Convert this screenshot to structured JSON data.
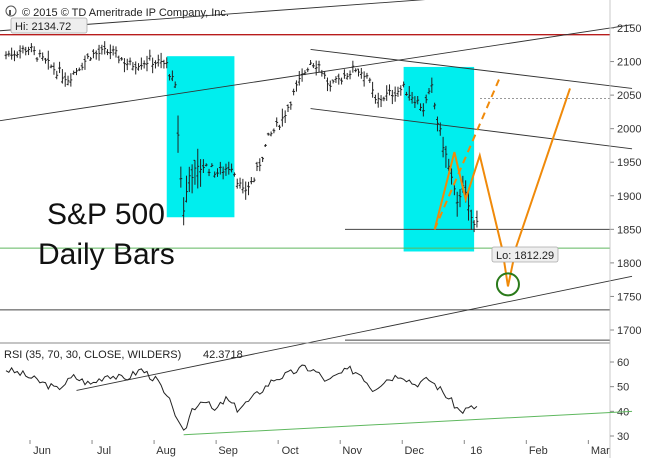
{
  "header": {
    "copyright": "© 2015 © TD Ameritrade IP Company, Inc.",
    "hi_label": "Hi: 2134.72"
  },
  "annotations": {
    "title_line1": "S&P 500",
    "title_line2": "Daily Bars",
    "lo_label": "Lo: 1812.29"
  },
  "rsi": {
    "label": "RSI (35, 70, 30, CLOSE, WILDERS)",
    "value": "42.3718"
  },
  "colors": {
    "highlight": "#00eeee",
    "projection": "#f08a0a",
    "hi_line": "#b81c1c",
    "support": "#5fb85f",
    "target_circle": "#2a7a1a",
    "bars": "#222222",
    "trendline": "#333333"
  },
  "chart_data": [
    {
      "type": "bar",
      "title": "S&P 500 Daily Bars",
      "subtitle": "",
      "xlabel": "",
      "ylabel": "",
      "x_ticks": [
        "Jun",
        "Jul",
        "Aug",
        "Sep",
        "Oct",
        "Nov",
        "Dec",
        "16",
        "Feb",
        "Mar"
      ],
      "ylim": [
        1620,
        2165
      ],
      "y_ticks": [
        1700,
        1750,
        1800,
        1850,
        1900,
        1950,
        2000,
        2050,
        2100,
        2150
      ],
      "grid": false,
      "legend": "none",
      "price_path": [
        {
          "d": 0,
          "c": 2110
        },
        {
          "d": 8,
          "c": 2120
        },
        {
          "d": 15,
          "c": 2095
        },
        {
          "d": 22,
          "c": 2075
        },
        {
          "d": 30,
          "c": 2110
        },
        {
          "d": 37,
          "c": 2115
        },
        {
          "d": 44,
          "c": 2095
        },
        {
          "d": 51,
          "c": 2102
        },
        {
          "d": 57,
          "c": 2095
        },
        {
          "d": 60,
          "c": 2060
        },
        {
          "d": 62,
          "c": 1925
        },
        {
          "d": 63,
          "c": 1880
        },
        {
          "d": 65,
          "c": 1930
        },
        {
          "d": 70,
          "c": 1945
        },
        {
          "d": 75,
          "c": 1935
        },
        {
          "d": 80,
          "c": 1945
        },
        {
          "d": 84,
          "c": 1905
        },
        {
          "d": 88,
          "c": 1925
        },
        {
          "d": 93,
          "c": 1985
        },
        {
          "d": 98,
          "c": 2015
        },
        {
          "d": 104,
          "c": 2070
        },
        {
          "d": 108,
          "c": 2100
        },
        {
          "d": 111,
          "c": 2095
        },
        {
          "d": 115,
          "c": 2060
        },
        {
          "d": 120,
          "c": 2080
        },
        {
          "d": 124,
          "c": 2090
        },
        {
          "d": 128,
          "c": 2080
        },
        {
          "d": 131,
          "c": 2040
        },
        {
          "d": 135,
          "c": 2050
        },
        {
          "d": 141,
          "c": 2060
        },
        {
          "d": 145,
          "c": 2045
        },
        {
          "d": 148,
          "c": 2030
        },
        {
          "d": 151,
          "c": 2060
        },
        {
          "d": 153,
          "c": 2010
        },
        {
          "d": 156,
          "c": 1960
        },
        {
          "d": 158,
          "c": 1925
        },
        {
          "d": 160,
          "c": 1885
        },
        {
          "d": 162,
          "c": 1920
        },
        {
          "d": 164,
          "c": 1880
        },
        {
          "d": 166,
          "c": 1855
        },
        {
          "d": 167,
          "c": 1860
        }
      ],
      "key_levels": {
        "hi": 2134.72,
        "lo": 1812.29,
        "red_level": 2140,
        "green_level": 1822,
        "dashed_level": 2045,
        "h_line_1850": 1850,
        "h_line_1730": 1730,
        "h_line_1685": 1685
      },
      "highlight_zones": [
        {
          "d_start": 57,
          "d_end": 81,
          "y_top": 2108,
          "y_bottom": 1868
        },
        {
          "d_start": 141,
          "d_end": 166,
          "y_top": 2092,
          "y_bottom": 1817
        }
      ],
      "trendlines": [
        {
          "d1": -5,
          "y1": 2010,
          "d2": 222,
          "y2": 2155
        },
        {
          "d1": -5,
          "y1": 2145,
          "d2": 222,
          "y2": 2215
        },
        {
          "d1": 25,
          "y1": 1610,
          "d2": 222,
          "y2": 1780
        },
        {
          "d1": 108,
          "y1": 2118,
          "d2": 222,
          "y2": 2060
        },
        {
          "d1": 108,
          "y1": 2030,
          "d2": 222,
          "y2": 1970
        }
      ],
      "projection_zigzag": [
        {
          "d": 152,
          "v": 1850
        },
        {
          "d": 159,
          "v": 1965
        },
        {
          "d": 163,
          "v": 1895
        },
        {
          "d": 168,
          "v": 1960
        },
        {
          "d": 176,
          "v": 1820
        },
        {
          "d": 178,
          "v": 1765
        },
        {
          "d": 181,
          "v": 1825
        },
        {
          "d": 200,
          "v": 2060
        }
      ],
      "projection_dashed": [
        {
          "d": 152,
          "v": 1850
        },
        {
          "d": 175,
          "v": 2075
        }
      ],
      "target_circle": {
        "d": 178,
        "v": 1768
      }
    },
    {
      "type": "line",
      "title": "RSI (35, 70, 30, CLOSE, WILDERS) 42.3718",
      "xlabel": "",
      "ylabel": "",
      "ylim": [
        30,
        65
      ],
      "y_ticks": [
        30,
        40,
        50,
        60
      ],
      "last_value": 42.3718,
      "rsi_path": [
        {
          "d": 0,
          "v": 57
        },
        {
          "d": 6,
          "v": 55
        },
        {
          "d": 12,
          "v": 52
        },
        {
          "d": 18,
          "v": 49
        },
        {
          "d": 24,
          "v": 54
        },
        {
          "d": 30,
          "v": 51
        },
        {
          "d": 36,
          "v": 55
        },
        {
          "d": 42,
          "v": 53
        },
        {
          "d": 48,
          "v": 57
        },
        {
          "d": 54,
          "v": 52
        },
        {
          "d": 57,
          "v": 45
        },
        {
          "d": 59,
          "v": 43
        },
        {
          "d": 61,
          "v": 35
        },
        {
          "d": 63,
          "v": 31
        },
        {
          "d": 66,
          "v": 41
        },
        {
          "d": 70,
          "v": 45
        },
        {
          "d": 74,
          "v": 40
        },
        {
          "d": 78,
          "v": 45
        },
        {
          "d": 82,
          "v": 41
        },
        {
          "d": 86,
          "v": 44
        },
        {
          "d": 90,
          "v": 48
        },
        {
          "d": 95,
          "v": 53
        },
        {
          "d": 100,
          "v": 55
        },
        {
          "d": 106,
          "v": 58
        },
        {
          "d": 110,
          "v": 56
        },
        {
          "d": 114,
          "v": 52
        },
        {
          "d": 118,
          "v": 55
        },
        {
          "d": 122,
          "v": 57
        },
        {
          "d": 126,
          "v": 55
        },
        {
          "d": 130,
          "v": 49
        },
        {
          "d": 135,
          "v": 53
        },
        {
          "d": 140,
          "v": 55
        },
        {
          "d": 145,
          "v": 51
        },
        {
          "d": 150,
          "v": 53
        },
        {
          "d": 154,
          "v": 49
        },
        {
          "d": 158,
          "v": 44
        },
        {
          "d": 161,
          "v": 40
        },
        {
          "d": 164,
          "v": 41
        },
        {
          "d": 167,
          "v": 42
        }
      ],
      "rsi_trendline": [
        {
          "d": 63,
          "v": 30.5
        },
        {
          "d": 222,
          "v": 40
        }
      ]
    }
  ]
}
